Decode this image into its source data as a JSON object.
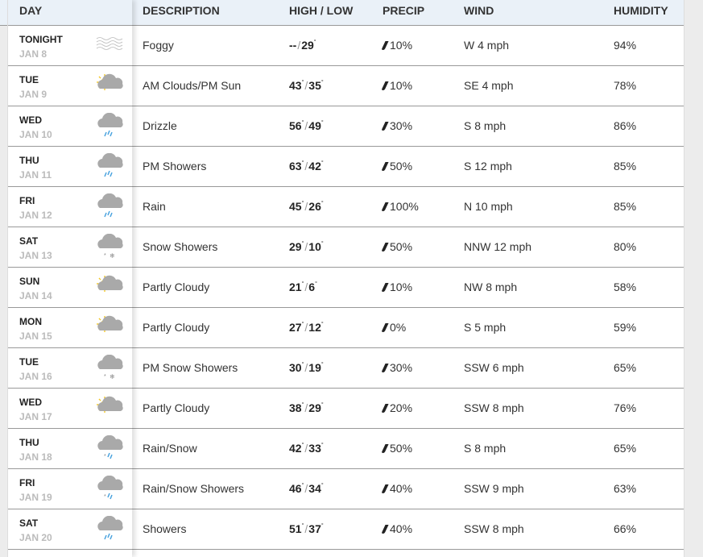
{
  "header": {
    "day": "DAY",
    "description": "DESCRIPTION",
    "high_low": "HIGH / LOW",
    "precip": "PRECIP",
    "wind": "WIND",
    "humidity": "HUMIDITY"
  },
  "colors": {
    "header_bg": "#eaf1f8",
    "rain": "#4aa3df",
    "sun": "#f5c518",
    "cloud": "#a9a9a9"
  },
  "rows": [
    {
      "day": "TONIGHT",
      "date": "JAN 8",
      "icon": "fog",
      "desc": "Foggy",
      "high": "--",
      "low": "29",
      "precip": "10%",
      "wind": "W 4 mph",
      "humidity": "94%"
    },
    {
      "day": "TUE",
      "date": "JAN 9",
      "icon": "partly-cloudy",
      "desc": "AM Clouds/PM Sun",
      "high": "43",
      "low": "35",
      "precip": "10%",
      "wind": "SE 4 mph",
      "humidity": "78%"
    },
    {
      "day": "WED",
      "date": "JAN 10",
      "icon": "rain",
      "desc": "Drizzle",
      "high": "56",
      "low": "49",
      "precip": "30%",
      "wind": "S 8 mph",
      "humidity": "86%"
    },
    {
      "day": "THU",
      "date": "JAN 11",
      "icon": "rain",
      "desc": "PM Showers",
      "high": "63",
      "low": "42",
      "precip": "50%",
      "wind": "S 12 mph",
      "humidity": "85%"
    },
    {
      "day": "FRI",
      "date": "JAN 12",
      "icon": "rain",
      "desc": "Rain",
      "high": "45",
      "low": "26",
      "precip": "100%",
      "wind": "N 10 mph",
      "humidity": "85%"
    },
    {
      "day": "SAT",
      "date": "JAN 13",
      "icon": "snow",
      "desc": "Snow Showers",
      "high": "29",
      "low": "10",
      "precip": "50%",
      "wind": "NNW 12 mph",
      "humidity": "80%"
    },
    {
      "day": "SUN",
      "date": "JAN 14",
      "icon": "partly-cloudy",
      "desc": "Partly Cloudy",
      "high": "21",
      "low": "6",
      "precip": "10%",
      "wind": "NW 8 mph",
      "humidity": "58%"
    },
    {
      "day": "MON",
      "date": "JAN 15",
      "icon": "partly-cloudy",
      "desc": "Partly Cloudy",
      "high": "27",
      "low": "12",
      "precip": "0%",
      "wind": "S 5 mph",
      "humidity": "59%"
    },
    {
      "day": "TUE",
      "date": "JAN 16",
      "icon": "snow",
      "desc": "PM Snow Showers",
      "high": "30",
      "low": "19",
      "precip": "30%",
      "wind": "SSW 6 mph",
      "humidity": "65%"
    },
    {
      "day": "WED",
      "date": "JAN 17",
      "icon": "partly-cloudy",
      "desc": "Partly Cloudy",
      "high": "38",
      "low": "29",
      "precip": "20%",
      "wind": "SSW 8 mph",
      "humidity": "76%"
    },
    {
      "day": "THU",
      "date": "JAN 18",
      "icon": "rain-snow",
      "desc": "Rain/Snow",
      "high": "42",
      "low": "33",
      "precip": "50%",
      "wind": "S 8 mph",
      "humidity": "65%"
    },
    {
      "day": "FRI",
      "date": "JAN 19",
      "icon": "rain-snow",
      "desc": "Rain/Snow Showers",
      "high": "46",
      "low": "34",
      "precip": "40%",
      "wind": "SSW 9 mph",
      "humidity": "63%"
    },
    {
      "day": "SAT",
      "date": "JAN 20",
      "icon": "rain",
      "desc": "Showers",
      "high": "51",
      "low": "37",
      "precip": "40%",
      "wind": "SSW 8 mph",
      "humidity": "66%"
    }
  ]
}
